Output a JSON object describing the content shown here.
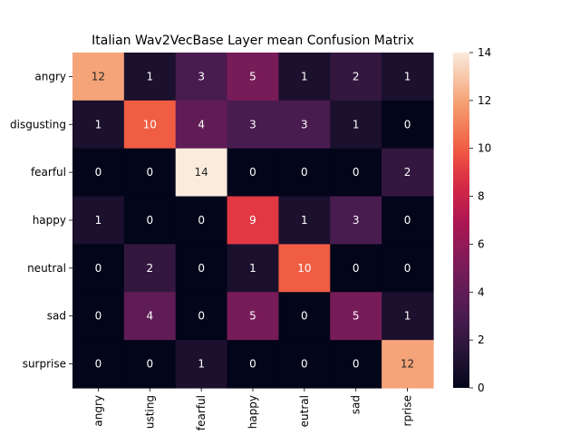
{
  "chart_data": {
    "type": "heatmap",
    "title": "Italian Wav2VecBase Layer mean Confusion Matrix",
    "xlabel": "",
    "ylabel": "",
    "row_labels": [
      "angry",
      "disgusting",
      "fearful",
      "happy",
      "neutral",
      "sad",
      "surprise"
    ],
    "col_tick_labels": [
      "angry",
      "usting",
      "fearful",
      "happy",
      "eutral",
      "sad",
      "rprise"
    ],
    "values": [
      [
        12,
        1,
        3,
        5,
        1,
        2,
        1
      ],
      [
        1,
        10,
        4,
        3,
        3,
        1,
        0
      ],
      [
        0,
        0,
        14,
        0,
        0,
        0,
        2
      ],
      [
        1,
        0,
        0,
        9,
        1,
        3,
        0
      ],
      [
        0,
        2,
        0,
        1,
        10,
        0,
        0
      ],
      [
        0,
        4,
        0,
        5,
        0,
        5,
        1
      ],
      [
        0,
        0,
        1,
        0,
        0,
        0,
        12
      ]
    ],
    "colorbar": {
      "min": 0,
      "max": 14,
      "ticks": [
        "0",
        "2",
        "4",
        "6",
        "8",
        "10",
        "12",
        "14"
      ]
    },
    "colormap": "rocket",
    "annotations": true
  }
}
